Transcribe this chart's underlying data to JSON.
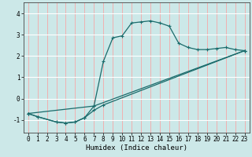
{
  "xlabel": "Humidex (Indice chaleur)",
  "bg_color": "#cce8e8",
  "grid_color_major": "#ff9999",
  "grid_color_white": "#ffffff",
  "line_color": "#1a6b6b",
  "xlim": [
    -0.5,
    23.5
  ],
  "ylim": [
    -1.6,
    4.5
  ],
  "xticks": [
    0,
    1,
    2,
    3,
    4,
    5,
    6,
    7,
    8,
    9,
    10,
    11,
    12,
    13,
    14,
    15,
    16,
    17,
    18,
    19,
    20,
    21,
    22,
    23
  ],
  "yticks": [
    -1,
    0,
    1,
    2,
    3,
    4
  ],
  "series1_x": [
    0,
    1,
    3,
    4,
    5,
    6,
    7,
    8,
    9,
    10,
    11,
    12,
    13,
    14,
    15,
    16,
    17,
    18,
    19,
    20,
    21,
    22,
    23
  ],
  "series1_y": [
    -0.7,
    -0.85,
    -1.1,
    -1.15,
    -1.1,
    -0.9,
    -0.35,
    1.75,
    2.85,
    2.95,
    3.55,
    3.6,
    3.65,
    3.55,
    3.4,
    2.6,
    2.4,
    2.3,
    2.3,
    2.35,
    2.4,
    2.3,
    2.25
  ],
  "series2_x": [
    0,
    1,
    3,
    4,
    5,
    6,
    7,
    8,
    23
  ],
  "series2_y": [
    -0.7,
    -0.85,
    -1.1,
    -1.15,
    -1.1,
    -0.9,
    -0.55,
    -0.3,
    2.25
  ],
  "series3_x": [
    0,
    7,
    23
  ],
  "series3_y": [
    -0.7,
    -0.35,
    2.25
  ],
  "xlabel_fontsize": 6.5,
  "tick_fontsize": 5.5
}
